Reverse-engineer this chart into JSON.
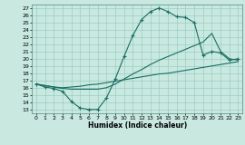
{
  "background_color": "#c8e8e0",
  "grid_color": "#90c8bc",
  "line_color": "#1a6e62",
  "xlabel": "Humidex (Indice chaleur)",
  "xlim": [
    -0.5,
    23.5
  ],
  "ylim": [
    12.5,
    27.5
  ],
  "xticks": [
    0,
    1,
    2,
    3,
    4,
    5,
    6,
    7,
    8,
    9,
    10,
    11,
    12,
    13,
    14,
    15,
    16,
    17,
    18,
    19,
    20,
    21,
    22,
    23
  ],
  "yticks": [
    13,
    14,
    15,
    16,
    17,
    18,
    19,
    20,
    21,
    22,
    23,
    24,
    25,
    26,
    27
  ],
  "line1_x": [
    0,
    1,
    2,
    3,
    4,
    5,
    6,
    7,
    8,
    9,
    10,
    11,
    12,
    13,
    14,
    15,
    16,
    17,
    18,
    19,
    20,
    21,
    22,
    23
  ],
  "line1_y": [
    16.5,
    16.1,
    15.9,
    15.5,
    14.1,
    13.2,
    13.0,
    13.0,
    14.6,
    17.2,
    20.3,
    23.2,
    25.4,
    26.5,
    27.0,
    26.5,
    25.8,
    25.7,
    25.0,
    20.5,
    21.0,
    20.8,
    19.8,
    20.0
  ],
  "line2_x": [
    0,
    1,
    2,
    3,
    4,
    5,
    6,
    7,
    8,
    9,
    10,
    11,
    12,
    13,
    14,
    15,
    16,
    17,
    18,
    19,
    20,
    21,
    22,
    23
  ],
  "line2_y": [
    16.5,
    16.3,
    16.1,
    16.0,
    16.1,
    16.2,
    16.4,
    16.5,
    16.7,
    16.9,
    17.1,
    17.3,
    17.5,
    17.7,
    17.9,
    18.0,
    18.2,
    18.4,
    18.6,
    18.8,
    19.0,
    19.2,
    19.4,
    19.6
  ],
  "line3_x": [
    0,
    1,
    2,
    3,
    4,
    5,
    6,
    7,
    8,
    9,
    10,
    11,
    12,
    13,
    14,
    15,
    16,
    17,
    18,
    19,
    20,
    21,
    22,
    23
  ],
  "line3_y": [
    16.5,
    16.3,
    16.1,
    15.9,
    15.8,
    15.8,
    15.8,
    15.8,
    16.0,
    16.5,
    17.2,
    17.9,
    18.5,
    19.2,
    19.8,
    20.3,
    20.8,
    21.3,
    21.8,
    22.3,
    23.5,
    21.0,
    20.0,
    19.8
  ]
}
